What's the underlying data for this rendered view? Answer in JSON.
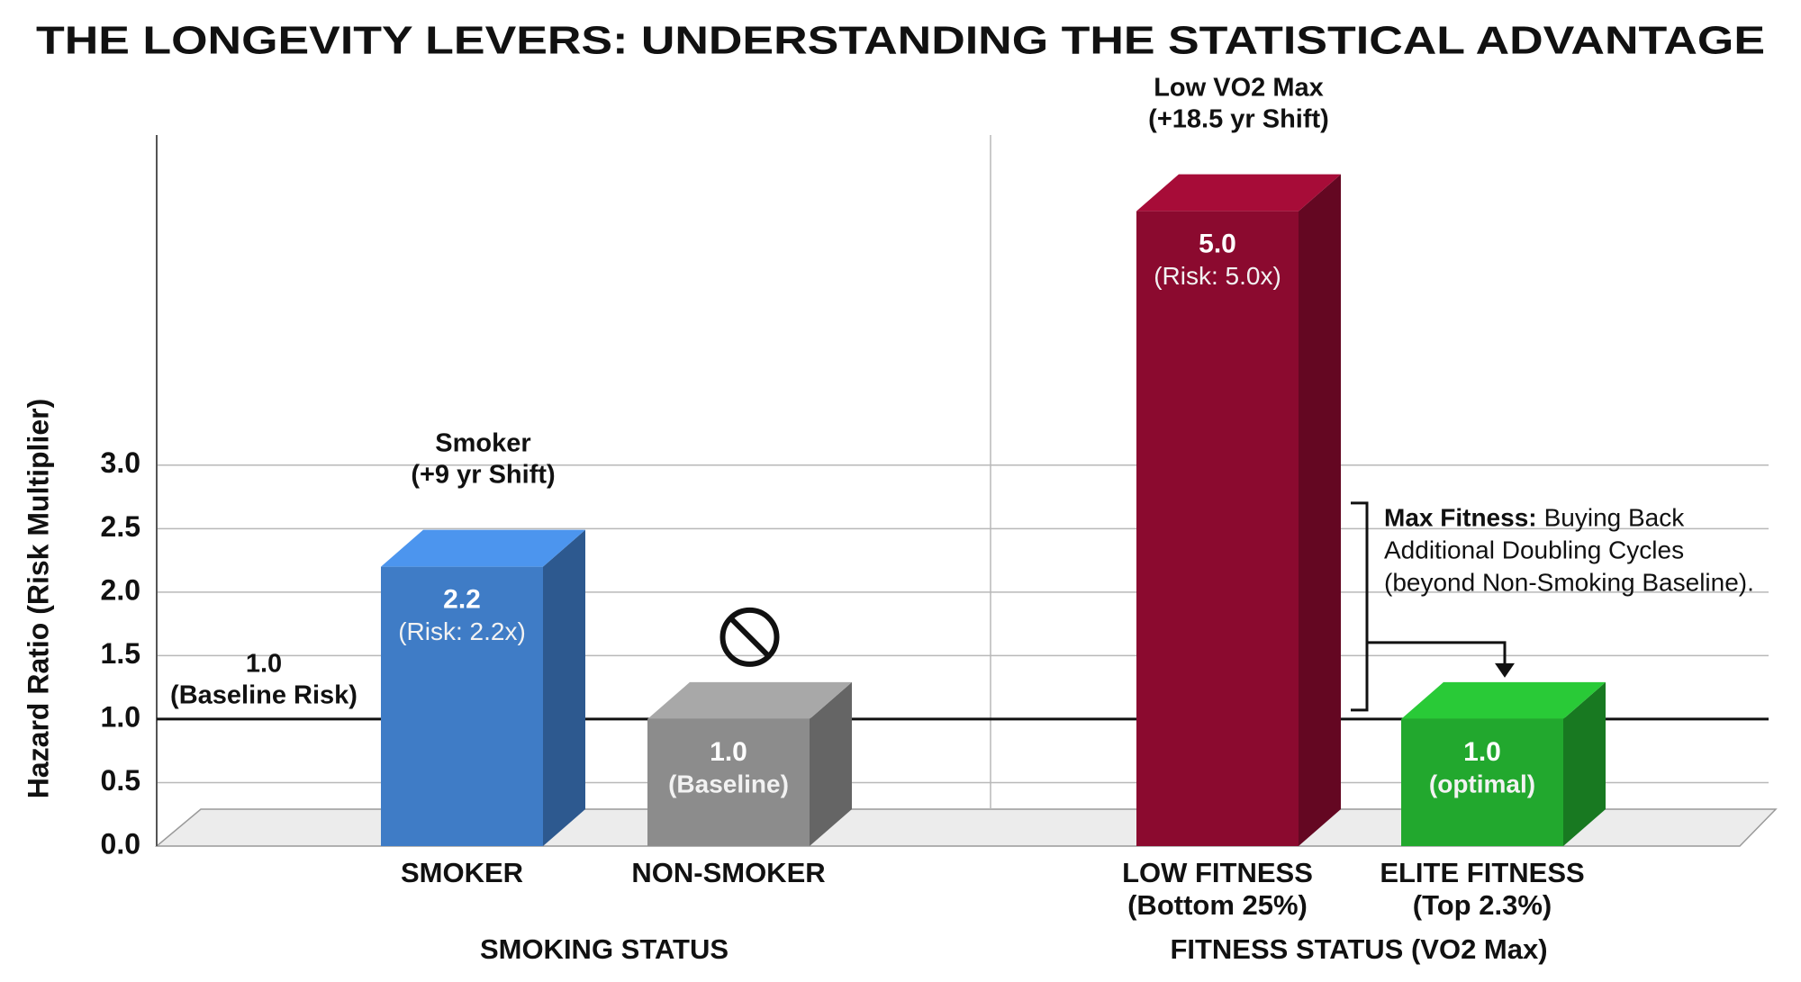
{
  "chart_data": {
    "type": "bar3d",
    "title": "THE LONGEVITY LEVERS: UNDERSTANDING THE STATISTICAL ADVANTAGE",
    "y_label": "Hazard Ratio (Risk Multiplier)",
    "categories": [
      "SMOKER",
      "NON-SMOKER",
      "LOW FITNESS",
      "ELITE FITNESS"
    ],
    "category_sublabels": [
      null,
      null,
      "(Bottom 25%)",
      "(Top 2.3%)"
    ],
    "group_labels": [
      "SMOKING STATUS",
      "FITNESS STATUS (VO2 Max)"
    ],
    "values": [
      2.2,
      1,
      5,
      1
    ],
    "value_labels": [
      "2.2",
      "1.0",
      "5.0",
      "1.0"
    ],
    "bar_notes": [
      "(Risk: 2.2x)",
      "(Baseline)",
      "(Risk: 5.0x)",
      "(optimal)"
    ],
    "bar_titles": [
      [
        "Smoker",
        "(+9 yr Shift)"
      ],
      null,
      [
        "Low VO2 Max",
        "(+18.5 yr Shift)"
      ],
      null
    ],
    "colors": [
      "#3f7cc6",
      "#8c8c8c",
      "#8b0a2f",
      "#22a82e"
    ],
    "ylim": [
      0,
      5.6
    ],
    "yticks": [
      {
        "value": 0,
        "label": "0.0"
      },
      0.5,
      {
        "value": 1,
        "label": "1.0"
      },
      1.5,
      {
        "value": 2,
        "label": "2.0"
      },
      2.5,
      {
        "value": 3,
        "label": "3.0"
      }
    ],
    "grid": true,
    "reference_line": {
      "value": 1,
      "label": [
        "1.0",
        "(Baseline Risk)"
      ]
    },
    "annotation": {
      "bold": "Max Fitness:",
      "lines": [
        "Buying Back",
        "Additional Doubling Cycles",
        "(beyond Non-Smoking Baseline)."
      ]
    }
  }
}
